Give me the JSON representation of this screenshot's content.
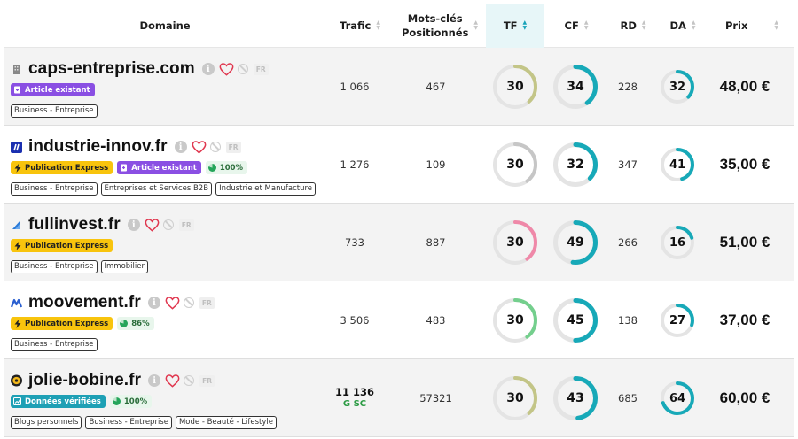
{
  "headers": {
    "domaine": "Domaine",
    "trafic": "Trafic",
    "mots_cles_1": "Mots-clés",
    "mots_cles_2": "Positionnés",
    "tf": "TF",
    "cf": "CF",
    "rd": "RD",
    "da": "DA",
    "prix": "Prix"
  },
  "colors": {
    "tf_highlight": "#e7f6f8",
    "gauge_track": "#e4e4e4",
    "teal": "#17a9b8",
    "olive": "#c3c587",
    "gray": "#c6c6c6",
    "pink": "#ef88a8",
    "green": "#74cf8d"
  },
  "rows": [
    {
      "domain": "caps-entreprise.com",
      "favicon": "building-icon",
      "lang": "FR",
      "badges": [
        {
          "type": "exist",
          "label": "Article existant"
        }
      ],
      "categories": [
        "Business - Entreprise"
      ],
      "traffic": "1 066",
      "gsc": "",
      "keywords": "467",
      "tf": 30,
      "tf_pct": 0.38,
      "tf_color": "olive",
      "cf": 34,
      "cf_pct": 0.4,
      "rd": "228",
      "da": 32,
      "da_pct": 0.37,
      "price": "48,00 €"
    },
    {
      "domain": "industrie-innov.fr",
      "favicon": "blue-square-icon",
      "lang": "FR",
      "badges": [
        {
          "type": "express",
          "label": "Publication Express"
        },
        {
          "type": "exist",
          "label": "Article existant"
        },
        {
          "type": "pct",
          "label": "100%"
        }
      ],
      "categories": [
        "Business - Entreprise",
        "Entreprises et Services B2B",
        "Industrie et Manufacture"
      ],
      "traffic": "1 276",
      "gsc": "",
      "keywords": "109",
      "tf": 30,
      "tf_pct": 0.4,
      "tf_color": "gray",
      "cf": 32,
      "cf_pct": 0.37,
      "rd": "347",
      "da": 41,
      "da_pct": 0.45,
      "price": "35,00 €"
    },
    {
      "domain": "fullinvest.fr",
      "favicon": "chart-icon",
      "lang": "FR",
      "badges": [
        {
          "type": "express",
          "label": "Publication Express"
        }
      ],
      "categories": [
        "Business - Entreprise",
        "Immobilier"
      ],
      "traffic": "733",
      "gsc": "",
      "keywords": "887",
      "tf": 30,
      "tf_pct": 0.4,
      "tf_color": "pink",
      "cf": 49,
      "cf_pct": 0.52,
      "rd": "266",
      "da": 16,
      "da_pct": 0.2,
      "price": "51,00 €"
    },
    {
      "domain": "moovement.fr",
      "favicon": "m-logo-icon",
      "lang": "FR",
      "badges": [
        {
          "type": "express",
          "label": "Publication Express"
        },
        {
          "type": "pct",
          "label": "86%"
        }
      ],
      "categories": [
        "Business - Entreprise"
      ],
      "traffic": "3 506",
      "gsc": "",
      "keywords": "483",
      "tf": 30,
      "tf_pct": 0.4,
      "tf_color": "green",
      "cf": 45,
      "cf_pct": 0.5,
      "rd": "138",
      "da": 27,
      "da_pct": 0.3,
      "price": "37,00 €"
    },
    {
      "domain": "jolie-bobine.fr",
      "favicon": "bobbin-icon",
      "lang": "FR",
      "badges": [
        {
          "type": "verif",
          "label": "Données vérifiées"
        },
        {
          "type": "pct",
          "label": "100%"
        }
      ],
      "categories": [
        "Blogs personnels",
        "Business - Entreprise",
        "Mode - Beauté - Lifestyle"
      ],
      "traffic": "11 136",
      "gsc": "SC",
      "keywords": "57321",
      "tf": 30,
      "tf_pct": 0.38,
      "tf_color": "olive",
      "cf": 43,
      "cf_pct": 0.48,
      "rd": "685",
      "da": 64,
      "da_pct": 0.7,
      "price": "60,00 €"
    }
  ]
}
